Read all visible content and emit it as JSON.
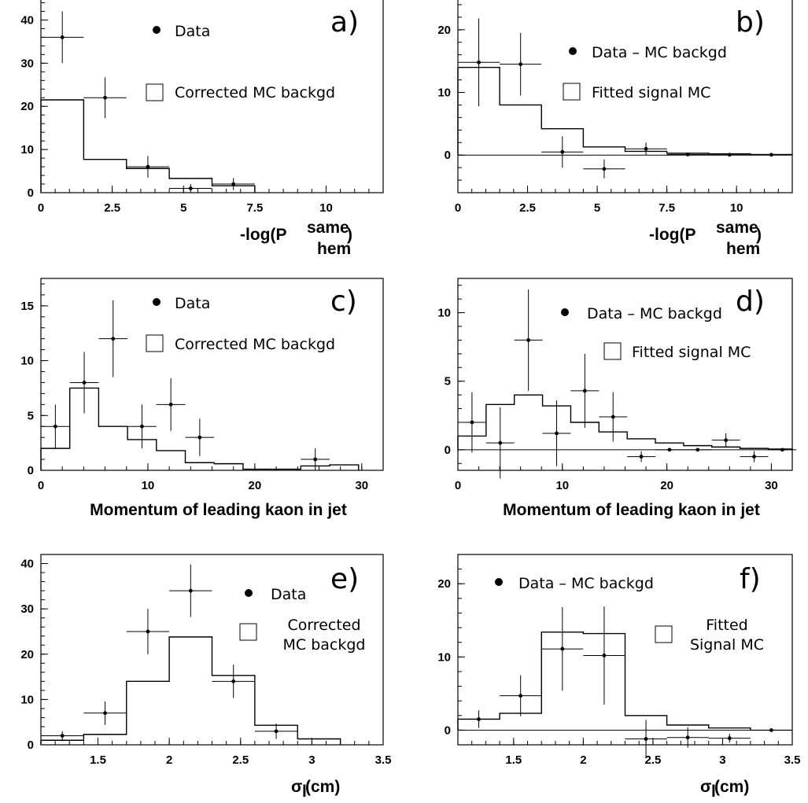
{
  "chart_data": [
    {
      "id": "a",
      "type": "bar",
      "tag": "a)",
      "xlabel_main": "-log(P",
      "xlabel_sup": "same",
      "xlabel_sub": "hem",
      "xlabel_close": ")",
      "xlim": [
        0,
        12
      ],
      "ylim": [
        0,
        45
      ],
      "xticks": [
        0,
        2.5,
        5,
        7.5,
        10
      ],
      "xtick_labels": [
        "0",
        "2.5",
        "5",
        "7.5",
        "10"
      ],
      "yticks": [
        0,
        10,
        20,
        30,
        40
      ],
      "ytick_labels": [
        "0",
        "10",
        "20",
        "30",
        "40"
      ],
      "legend_data": "Data",
      "legend_hist": [
        "Corrected MC backgd"
      ],
      "hist": {
        "edges": [
          0,
          1.5,
          3,
          4.5,
          6,
          7.5
        ],
        "values": [
          21.5,
          7.7,
          5.6,
          3.3,
          1.6
        ]
      },
      "points": {
        "x": [
          0.75,
          2.25,
          3.75,
          5.25,
          6.75
        ],
        "y": [
          36,
          22,
          6,
          1,
          2
        ],
        "yerr": [
          6,
          4.7,
          2.5,
          1,
          1.4
        ],
        "xerr": 0.75
      }
    },
    {
      "id": "b",
      "type": "bar",
      "tag": "b)",
      "xlabel_main": "-log(P",
      "xlabel_sup": "same",
      "xlabel_sub": "hem",
      "xlabel_close": ")",
      "xlim": [
        0,
        12
      ],
      "ylim": [
        -6,
        25
      ],
      "xticks": [
        0,
        2.5,
        5,
        7.5,
        10
      ],
      "xtick_labels": [
        "0",
        "2.5",
        "5",
        "7.5",
        "10"
      ],
      "yticks": [
        0,
        10,
        20
      ],
      "ytick_labels": [
        "0",
        "10",
        "20"
      ],
      "legend_data": "Data – MC backgd",
      "legend_hist": [
        "Fitted signal MC"
      ],
      "zero_line": true,
      "hist": {
        "edges": [
          0,
          1.5,
          3,
          4.5,
          6,
          7.5,
          9,
          10.5,
          12
        ],
        "values": [
          14,
          8,
          4.2,
          1.3,
          0.6,
          0.3,
          0.2,
          0.1
        ]
      },
      "points": {
        "x": [
          0.75,
          2.25,
          3.75,
          5.25,
          6.75,
          8.25,
          9.75,
          11.25
        ],
        "y": [
          14.8,
          14.5,
          0.5,
          -2.2,
          1,
          0.1,
          0.05,
          0.05
        ],
        "yerr": [
          7,
          5,
          2.5,
          1.5,
          1,
          0.2,
          0.1,
          0.1
        ],
        "xerr": 0.75
      }
    },
    {
      "id": "c",
      "type": "bar",
      "tag": "c)",
      "xlabel": "Momentum of leading kaon in jet",
      "xlim": [
        0,
        32
      ],
      "ylim": [
        0,
        17.5
      ],
      "xticks": [
        0,
        10,
        20,
        30
      ],
      "xtick_labels": [
        "0",
        "10",
        "20",
        "30"
      ],
      "yticks": [
        0,
        5,
        10,
        15
      ],
      "ytick_labels": [
        "0",
        "5",
        "10",
        "15"
      ],
      "legend_data": "Data",
      "legend_hist": [
        "Corrected MC backgd"
      ],
      "hist": {
        "edges": [
          0,
          2.7,
          5.4,
          8.1,
          10.8,
          13.5,
          16.2,
          18.9,
          21.6,
          24.3,
          27,
          29.7
        ],
        "values": [
          2,
          7.5,
          4,
          2.8,
          1.8,
          0.7,
          0.6,
          0.1,
          0.1,
          0.4,
          0.5
        ]
      },
      "points": {
        "x": [
          1.35,
          4.05,
          6.75,
          9.45,
          12.15,
          14.85,
          25.65
        ],
        "y": [
          4,
          8,
          12,
          4,
          6,
          3,
          1
        ],
        "yerr": [
          2,
          2.8,
          3.5,
          2,
          2.4,
          1.7,
          1
        ],
        "xerr": 1.35
      }
    },
    {
      "id": "d",
      "type": "bar",
      "tag": "d)",
      "xlabel": "Momentum of leading kaon in jet",
      "xlim": [
        0,
        32
      ],
      "ylim": [
        -1.5,
        12.5
      ],
      "xticks": [
        0,
        10,
        20,
        30
      ],
      "xtick_labels": [
        "0",
        "10",
        "20",
        "30"
      ],
      "yticks": [
        0,
        5,
        10
      ],
      "ytick_labels": [
        "0",
        "5",
        "10"
      ],
      "legend_data": "Data – MC backgd",
      "legend_hist": [
        "Fitted signal MC"
      ],
      "zero_line": true,
      "hist": {
        "edges": [
          0,
          2.7,
          5.4,
          8.1,
          10.8,
          13.5,
          16.2,
          18.9,
          21.6,
          24.3,
          27,
          29.7,
          32
        ],
        "values": [
          1,
          3.3,
          4,
          3.2,
          2,
          1.3,
          0.8,
          0.5,
          0.3,
          0.2,
          0.1,
          0.05
        ]
      },
      "points": {
        "x": [
          1.35,
          4.05,
          6.75,
          9.45,
          12.15,
          14.85,
          17.55,
          20.25,
          22.95,
          25.65,
          28.35,
          31.05
        ],
        "y": [
          2,
          0.5,
          8,
          1.2,
          4.3,
          2.4,
          -0.5,
          0,
          0,
          0.7,
          -0.5,
          0
        ],
        "yerr": [
          2.2,
          2.6,
          3.7,
          2.4,
          2.7,
          1.8,
          0.4,
          0.1,
          0.1,
          0.5,
          0.4,
          0.1
        ],
        "xerr": 1.35
      }
    },
    {
      "id": "e",
      "type": "bar",
      "tag": "e)",
      "xlabel_sigma": "σ",
      "xlabel_sub": "l",
      "xlabel_unit": " (cm)",
      "xlim": [
        1.1,
        3.5
      ],
      "ylim": [
        0,
        42
      ],
      "xticks": [
        1.5,
        2,
        2.5,
        3,
        3.5
      ],
      "xtick_labels": [
        "1.5",
        "2",
        "2.5",
        "3",
        "3.5"
      ],
      "yticks": [
        0,
        10,
        20,
        30,
        40
      ],
      "ytick_labels": [
        "0",
        "10",
        "20",
        "30",
        "40"
      ],
      "legend_data": "Data",
      "legend_hist": [
        "Corrected",
        "MC backgd"
      ],
      "hist": {
        "edges": [
          1.1,
          1.4,
          1.7,
          2,
          2.3,
          2.6,
          2.9,
          3.2
        ],
        "values": [
          1,
          2.3,
          14,
          23.8,
          15.3,
          4.3,
          1.3
        ]
      },
      "points": {
        "x": [
          1.25,
          1.55,
          1.85,
          2.15,
          2.45,
          2.75
        ],
        "y": [
          2,
          7,
          25,
          34,
          14,
          3
        ],
        "yerr": [
          1,
          2.6,
          5,
          5.8,
          3.7,
          1.7
        ],
        "xerr": 0.15
      }
    },
    {
      "id": "f",
      "type": "bar",
      "tag": "f)",
      "xlabel_sigma": "σ",
      "xlabel_sub": "l",
      "xlabel_unit": " (cm)",
      "xlim": [
        1.1,
        3.5
      ],
      "ylim": [
        -2,
        24
      ],
      "xticks": [
        1.5,
        2,
        2.5,
        3,
        3.5
      ],
      "xtick_labels": [
        "1.5",
        "2",
        "2.5",
        "3",
        "3.5"
      ],
      "yticks": [
        0,
        10,
        20
      ],
      "ytick_labels": [
        "0",
        "10",
        "20"
      ],
      "legend_data": "Data – MC backgd",
      "legend_hist": [
        "Fitted",
        "Signal MC"
      ],
      "zero_line": true,
      "hist": {
        "edges": [
          1.1,
          1.4,
          1.7,
          2,
          2.3,
          2.6,
          2.9,
          3.2
        ],
        "values": [
          1.5,
          2.3,
          13.4,
          13.2,
          2,
          0.7,
          0.3
        ]
      },
      "points": {
        "x": [
          1.25,
          1.55,
          1.85,
          2.15,
          2.45,
          2.75,
          3.05,
          3.35
        ],
        "y": [
          1.5,
          4.7,
          11.1,
          10.2,
          -1.2,
          -1,
          -1.1,
          0
        ],
        "yerr": [
          1.2,
          2.8,
          5.7,
          6.7,
          2.6,
          1.4,
          0.6,
          0.1
        ],
        "xerr": 0.15
      }
    }
  ]
}
